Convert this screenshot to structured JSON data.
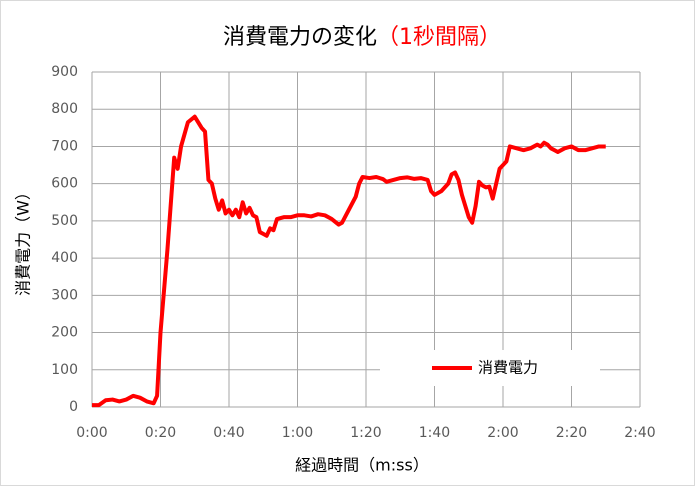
{
  "chart_data": {
    "type": "line",
    "title": "消費電力の変化",
    "title_note": "（1秒間隔）",
    "x_label": "経過時間（m:ss）",
    "y_label": "消費電力（W）",
    "x": [
      0,
      2,
      4,
      6,
      8,
      10,
      12,
      14,
      16,
      18,
      19,
      20,
      22,
      24,
      25,
      26,
      28,
      30,
      32,
      33,
      34,
      35,
      36,
      37,
      38,
      39,
      40,
      41,
      42,
      43,
      44,
      45,
      46,
      47,
      48,
      49,
      50,
      51,
      52,
      53,
      54,
      56,
      58,
      60,
      62,
      64,
      66,
      68,
      70,
      72,
      73,
      75,
      77,
      78,
      79,
      81,
      83,
      85,
      86,
      88,
      90,
      92,
      94,
      96,
      98,
      99,
      100,
      102,
      104,
      105,
      106,
      107,
      108,
      110,
      111,
      112,
      113,
      114,
      115,
      116,
      117,
      118,
      119,
      120,
      121,
      122,
      124,
      126,
      128,
      130,
      131,
      132,
      133,
      134,
      135,
      136,
      138,
      140,
      142,
      144,
      146,
      148,
      150
    ],
    "series": [
      {
        "name": "消費電力",
        "color": "#ff0000",
        "values": [
          5,
          5,
          18,
          20,
          15,
          20,
          30,
          25,
          15,
          10,
          30,
          200,
          420,
          670,
          640,
          700,
          765,
          780,
          750,
          740,
          610,
          600,
          560,
          530,
          555,
          520,
          530,
          515,
          530,
          510,
          550,
          520,
          535,
          515,
          510,
          470,
          465,
          460,
          480,
          475,
          505,
          510,
          510,
          515,
          515,
          512,
          518,
          515,
          505,
          490,
          495,
          530,
          565,
          600,
          618,
          615,
          618,
          612,
          605,
          610,
          615,
          617,
          613,
          615,
          610,
          580,
          570,
          580,
          600,
          625,
          630,
          610,
          570,
          510,
          495,
          540,
          605,
          595,
          590,
          592,
          560,
          600,
          640,
          650,
          660,
          700,
          695,
          690,
          695,
          705,
          700,
          710,
          705,
          695,
          690,
          685,
          695,
          700,
          690,
          690,
          695,
          700,
          700
        ]
      }
    ],
    "xlim": [
      0,
      160
    ],
    "xticks": [
      {
        "value": 0,
        "label": "0:00"
      },
      {
        "value": 20,
        "label": "0:20"
      },
      {
        "value": 40,
        "label": "0:40"
      },
      {
        "value": 60,
        "label": "1:00"
      },
      {
        "value": 80,
        "label": "1:20"
      },
      {
        "value": 100,
        "label": "1:40"
      },
      {
        "value": 120,
        "label": "2:00"
      },
      {
        "value": 140,
        "label": "2:20"
      },
      {
        "value": 160,
        "label": "2:40"
      }
    ],
    "ylim": [
      0,
      900
    ],
    "yticks": [
      0,
      100,
      200,
      300,
      400,
      500,
      600,
      700,
      800,
      900
    ],
    "grid": true,
    "legend": "lower-right"
  }
}
